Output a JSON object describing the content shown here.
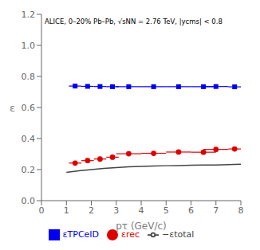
{
  "chart_data": {
    "type": "scatter",
    "xlabel": "pτ (GeV/c)",
    "ylabel": "ε",
    "annotation": "ALICE, 0–20% Pb–Pb, √sNN = 2.76 TeV, |ycms| < 0.8",
    "xlim": [
      0,
      8
    ],
    "ylim": [
      0,
      1.2
    ],
    "xticks": [
      0,
      1,
      2,
      3,
      4,
      5,
      6,
      7,
      8
    ],
    "yticks": [
      {
        "value": 0,
        "label": "0.0"
      },
      0.2,
      0.4,
      0.6,
      0.8,
      {
        "value": 1.0,
        "label": "1.0"
      },
      1.2
    ],
    "grid": false,
    "legend": "bottom",
    "series": [
      {
        "name": "εTPCeID",
        "type": "scatter",
        "marker": "square",
        "color": "#0000ee",
        "x": [
          1.35,
          1.85,
          2.35,
          2.85,
          3.5,
          4.5,
          5.5,
          6.5,
          7.0,
          7.75
        ],
        "values": [
          0.738,
          0.736,
          0.735,
          0.734,
          0.734,
          0.734,
          0.734,
          0.734,
          0.735,
          0.733
        ],
        "xerr": [
          0.25,
          0.25,
          0.25,
          0.25,
          0.5,
          0.5,
          0.5,
          0.5,
          0.5,
          0.25
        ]
      },
      {
        "name": "εrec",
        "type": "scatter",
        "marker": "circle",
        "color": "#dd0000",
        "x": [
          1.35,
          1.85,
          2.35,
          2.85,
          3.5,
          4.5,
          5.5,
          6.5,
          7.0,
          7.75
        ],
        "values": [
          0.242,
          0.258,
          0.268,
          0.28,
          0.302,
          0.305,
          0.313,
          0.312,
          0.33,
          0.333
        ],
        "xerr": [
          0.25,
          0.25,
          0.25,
          0.25,
          0.5,
          0.5,
          0.5,
          0.5,
          0.5,
          0.25
        ]
      },
      {
        "name": "−εtotal",
        "type": "line",
        "color": "#444444",
        "x": [
          1.0,
          1.5,
          2.0,
          2.5,
          3.0,
          3.5,
          4.0,
          4.5,
          5.0,
          5.5,
          6.0,
          6.5,
          7.0,
          7.5,
          8.0
        ],
        "values": [
          0.182,
          0.192,
          0.2,
          0.208,
          0.213,
          0.218,
          0.221,
          0.223,
          0.225,
          0.226,
          0.228,
          0.229,
          0.23,
          0.232,
          0.235
        ]
      }
    ]
  }
}
